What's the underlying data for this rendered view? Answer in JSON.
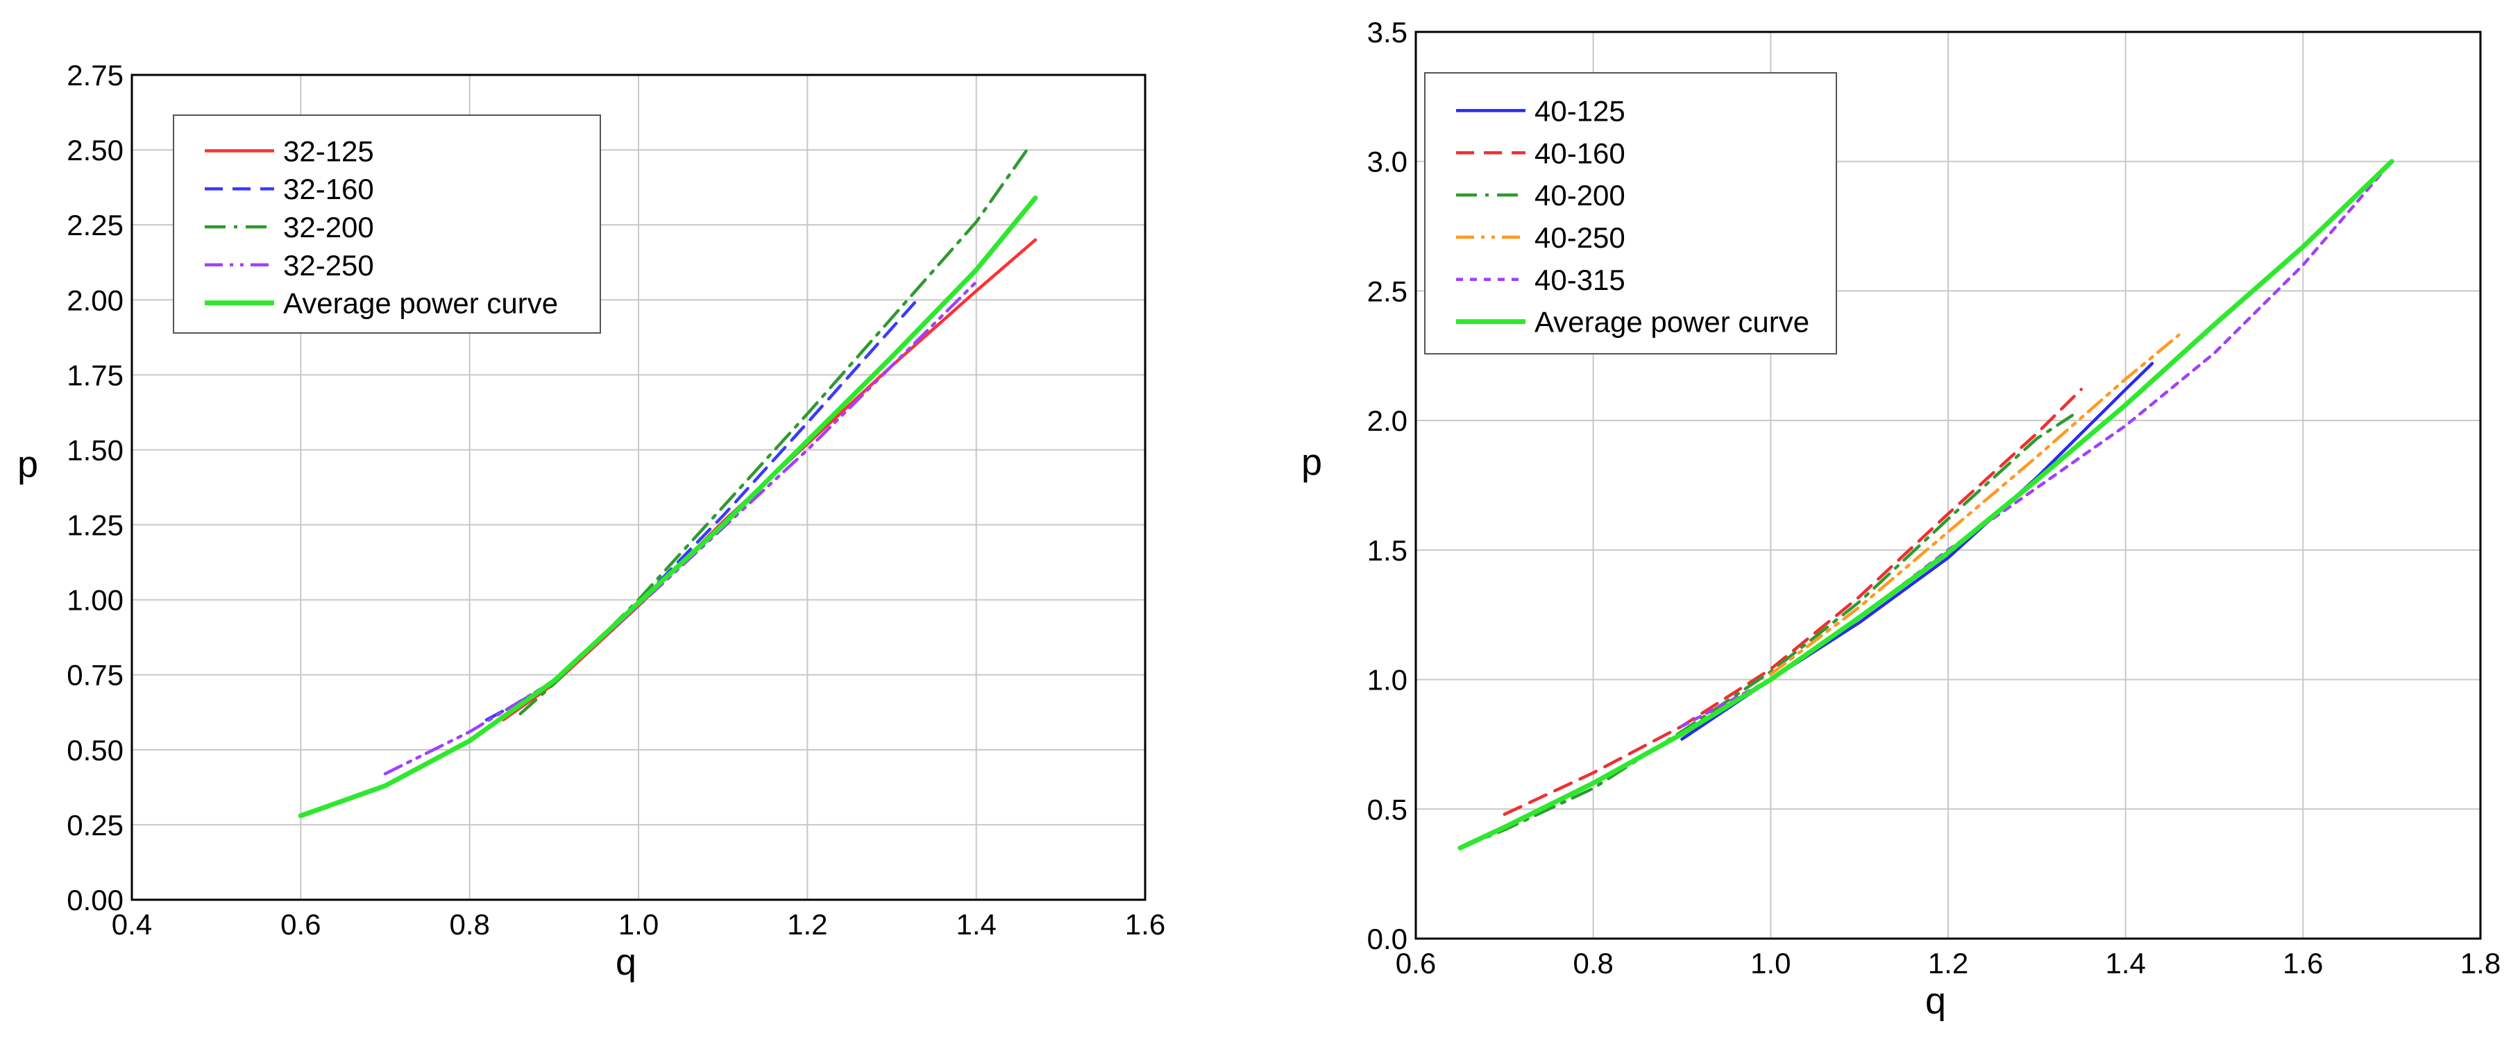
{
  "chart_data": [
    {
      "type": "line",
      "title": "",
      "xlabel": "q",
      "ylabel": "p",
      "xlim": [
        0.4,
        1.6
      ],
      "ylim": [
        0.0,
        2.75
      ],
      "xticks": [
        "0.4",
        "0.6",
        "0.8",
        "1.0",
        "1.2",
        "1.4",
        "1.6"
      ],
      "yticks": [
        "0.00",
        "0.25",
        "0.50",
        "0.75",
        "1.00",
        "1.25",
        "1.50",
        "1.75",
        "2.00",
        "2.25",
        "2.50",
        "2.75"
      ],
      "grid": true,
      "legend_position": "top-left",
      "series": [
        {
          "name": "32-125",
          "color": "#ff3030",
          "dash": "solid",
          "x": [
            0.84,
            0.9,
            1.0,
            1.1,
            1.2,
            1.3,
            1.4,
            1.47
          ],
          "y": [
            0.6,
            0.72,
            0.98,
            1.26,
            1.52,
            1.78,
            2.03,
            2.2
          ]
        },
        {
          "name": "32-160",
          "color": "#3a3aff",
          "dash": "dashed",
          "x": [
            0.82,
            0.86,
            0.9,
            1.0,
            1.1,
            1.2,
            1.33
          ],
          "y": [
            0.6,
            0.66,
            0.73,
            0.99,
            1.28,
            1.59,
            2.0
          ]
        },
        {
          "name": "32-200",
          "color": "#2e9a2e",
          "dash": "dashdot",
          "x": [
            0.86,
            0.9,
            1.0,
            1.1,
            1.2,
            1.3,
            1.4,
            1.46
          ],
          "y": [
            0.62,
            0.72,
            1.0,
            1.31,
            1.62,
            1.94,
            2.26,
            2.5
          ]
        },
        {
          "name": "32-250",
          "color": "#a040ff",
          "dash": "dashdotdot",
          "x": [
            0.7,
            0.8,
            0.9,
            1.0,
            1.1,
            1.2,
            1.3,
            1.4
          ],
          "y": [
            0.42,
            0.56,
            0.73,
            0.98,
            1.24,
            1.5,
            1.78,
            2.06
          ]
        },
        {
          "name": "Average power curve",
          "color": "#2ee82e",
          "dash": "solid",
          "x": [
            0.6,
            0.7,
            0.8,
            0.9,
            1.0,
            1.1,
            1.2,
            1.3,
            1.4,
            1.47
          ],
          "y": [
            0.28,
            0.38,
            0.53,
            0.73,
            0.99,
            1.25,
            1.53,
            1.81,
            2.1,
            2.34
          ]
        }
      ]
    },
    {
      "type": "line",
      "title": "",
      "xlabel": "q",
      "ylabel": "p",
      "xlim": [
        0.6,
        1.8
      ],
      "ylim": [
        0.0,
        3.5
      ],
      "xticks": [
        "0.6",
        "0.8",
        "1.0",
        "1.2",
        "1.4",
        "1.6",
        "1.8"
      ],
      "yticks": [
        "0.0",
        "0.5",
        "1.0",
        "1.5",
        "2.0",
        "2.5",
        "3.0",
        "3.5"
      ],
      "grid": true,
      "legend_position": "top-left",
      "series": [
        {
          "name": "40-125",
          "color": "#2a2aee",
          "dash": "solid",
          "x": [
            0.9,
            1.0,
            1.1,
            1.2,
            1.3,
            1.4,
            1.43
          ],
          "y": [
            0.77,
            1.0,
            1.22,
            1.47,
            1.78,
            2.12,
            2.22
          ]
        },
        {
          "name": "40-160",
          "color": "#ee3030",
          "dash": "dashed",
          "x": [
            0.7,
            0.8,
            0.9,
            1.0,
            1.1,
            1.2,
            1.3,
            1.35
          ],
          "y": [
            0.48,
            0.64,
            0.82,
            1.04,
            1.32,
            1.64,
            1.95,
            2.12
          ]
        },
        {
          "name": "40-200",
          "color": "#2e9a2e",
          "dash": "dashdot",
          "x": [
            0.65,
            0.7,
            0.8,
            0.9,
            1.0,
            1.1,
            1.2,
            1.3,
            1.34
          ],
          "y": [
            0.35,
            0.42,
            0.58,
            0.8,
            1.03,
            1.3,
            1.62,
            1.93,
            2.02
          ]
        },
        {
          "name": "40-250",
          "color": "#ff9a20",
          "dash": "dashdotdot",
          "x": [
            1.0,
            1.1,
            1.2,
            1.3,
            1.4,
            1.46
          ],
          "y": [
            1.02,
            1.28,
            1.57,
            1.86,
            2.16,
            2.33
          ]
        },
        {
          "name": "40-315",
          "color": "#a040ff",
          "dash": "dotted",
          "x": [
            0.9,
            1.0,
            1.1,
            1.2,
            1.3,
            1.4,
            1.5,
            1.6,
            1.7
          ],
          "y": [
            0.82,
            1.0,
            1.24,
            1.5,
            1.74,
            1.98,
            2.26,
            2.6,
            3.0
          ]
        },
        {
          "name": "Average power curve",
          "color": "#2ee82e",
          "dash": "solid",
          "x": [
            0.65,
            0.7,
            0.8,
            0.9,
            1.0,
            1.1,
            1.2,
            1.3,
            1.4,
            1.5,
            1.6,
            1.7
          ],
          "y": [
            0.35,
            0.43,
            0.6,
            0.79,
            1.0,
            1.24,
            1.49,
            1.77,
            2.06,
            2.37,
            2.67,
            3.0
          ]
        }
      ]
    }
  ]
}
